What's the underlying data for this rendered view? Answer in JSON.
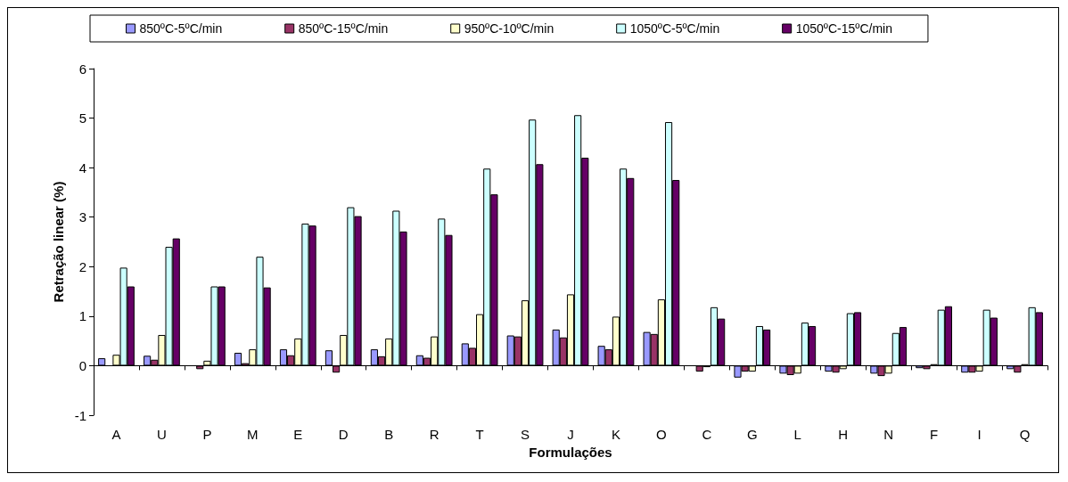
{
  "chart_data": {
    "type": "bar",
    "xlabel": "Formulações",
    "ylabel": "Retração linear (%)",
    "categories": [
      "A",
      "U",
      "P",
      "M",
      "E",
      "D",
      "B",
      "R",
      "T",
      "S",
      "J",
      "K",
      "O",
      "C",
      "G",
      "L",
      "H",
      "N",
      "F",
      "I",
      "Q"
    ],
    "series": [
      {
        "name": "850ºC-5ºC/min",
        "color": "#9999ff",
        "values": [
          0.15,
          0.2,
          null,
          0.26,
          0.33,
          0.31,
          0.33,
          0.21,
          0.45,
          0.61,
          0.73,
          0.4,
          0.68,
          null,
          -0.24,
          -0.16,
          -0.12,
          -0.16,
          -0.05,
          -0.14,
          -0.07
        ]
      },
      {
        "name": "850ºC-15ºC/min",
        "color": "#993366",
        "values": [
          null,
          0.12,
          -0.07,
          0.05,
          0.21,
          -0.14,
          0.19,
          0.16,
          0.36,
          0.59,
          0.57,
          0.33,
          0.64,
          -0.12,
          -0.12,
          -0.19,
          -0.14,
          -0.21,
          -0.07,
          -0.14,
          -0.14
        ]
      },
      {
        "name": "950ºC-10ºC/min",
        "color": "#ffffcc",
        "values": [
          0.22,
          0.62,
          0.1,
          0.33,
          0.55,
          0.62,
          0.55,
          0.59,
          1.04,
          1.32,
          1.44,
          0.99,
          1.34,
          -0.03,
          -0.12,
          -0.16,
          -0.07,
          -0.16,
          0.03,
          -0.12,
          0.03
        ]
      },
      {
        "name": "1050ºC-5ºC/min",
        "color": "#ccffff",
        "values": [
          1.98,
          2.4,
          1.6,
          2.2,
          2.87,
          3.2,
          3.13,
          2.97,
          3.98,
          4.97,
          5.06,
          3.98,
          4.92,
          1.18,
          0.8,
          0.87,
          1.06,
          0.66,
          1.13,
          1.13,
          1.18
        ]
      },
      {
        "name": "1050ºC-15ºC/min",
        "color": "#660066",
        "values": [
          1.6,
          2.57,
          1.6,
          1.58,
          2.83,
          3.02,
          2.71,
          2.64,
          3.46,
          4.07,
          4.2,
          3.79,
          3.75,
          0.95,
          0.73,
          0.8,
          1.08,
          0.78,
          1.2,
          0.97,
          1.08
        ]
      }
    ],
    "ylim": [
      -1,
      6
    ],
    "yticks": [
      -1,
      0,
      1,
      2,
      3,
      4,
      5,
      6
    ],
    "legend": "top"
  }
}
